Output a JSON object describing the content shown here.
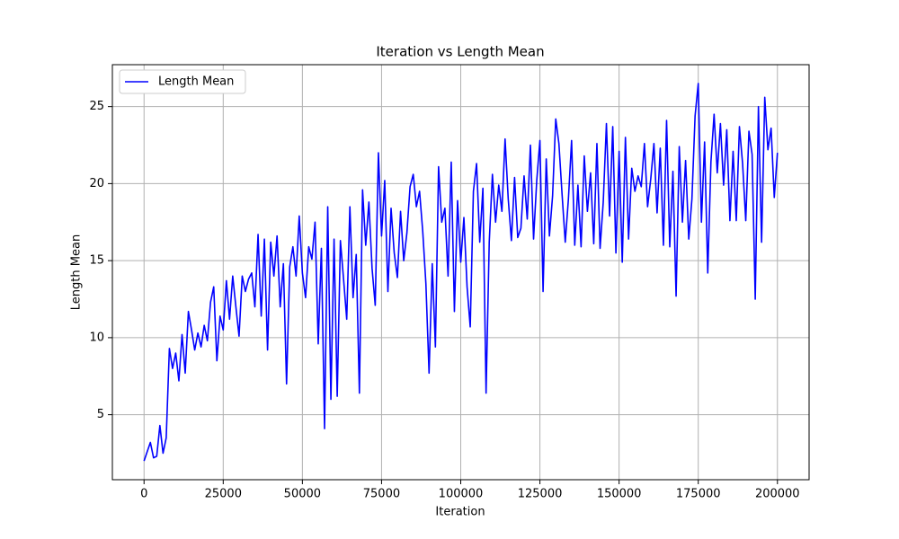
{
  "chart_data": {
    "type": "line",
    "title": "Iteration vs Length Mean",
    "x_label": "Iteration",
    "y_label": "Length Mean",
    "x": [
      0,
      1000,
      2000,
      3000,
      4000,
      5000,
      6000,
      7000,
      8000,
      9000,
      10000,
      11000,
      12000,
      13000,
      14000,
      15000,
      16000,
      17000,
      18000,
      19000,
      20000,
      21000,
      22000,
      23000,
      24000,
      25000,
      26000,
      27000,
      28000,
      29000,
      30000,
      31000,
      32000,
      33000,
      34000,
      35000,
      36000,
      37000,
      38000,
      39000,
      40000,
      41000,
      42000,
      43000,
      44000,
      45000,
      46000,
      47000,
      48000,
      49000,
      50000,
      51000,
      52000,
      53000,
      54000,
      55000,
      56000,
      57000,
      58000,
      59000,
      60000,
      61000,
      62000,
      63000,
      64000,
      65000,
      66000,
      67000,
      68000,
      69000,
      70000,
      71000,
      72000,
      73000,
      74000,
      75000,
      76000,
      77000,
      78000,
      79000,
      80000,
      81000,
      82000,
      83000,
      84000,
      85000,
      86000,
      87000,
      88000,
      89000,
      90000,
      91000,
      92000,
      93000,
      94000,
      95000,
      96000,
      97000,
      98000,
      99000,
      100000,
      101000,
      102000,
      103000,
      104000,
      105000,
      106000,
      107000,
      108000,
      109000,
      110000,
      111000,
      112000,
      113000,
      114000,
      115000,
      116000,
      117000,
      118000,
      119000,
      120000,
      121000,
      122000,
      123000,
      124000,
      125000,
      126000,
      127000,
      128000,
      129000,
      130000,
      131000,
      132000,
      133000,
      134000,
      135000,
      136000,
      137000,
      138000,
      139000,
      140000,
      141000,
      142000,
      143000,
      144000,
      145000,
      146000,
      147000,
      148000,
      149000,
      150000,
      151000,
      152000,
      153000,
      154000,
      155000,
      156000,
      157000,
      158000,
      159000,
      160000,
      161000,
      162000,
      163000,
      164000,
      165000,
      166000,
      167000,
      168000,
      169000,
      170000,
      171000,
      172000,
      173000,
      174000,
      175000,
      176000,
      177000,
      178000,
      179000,
      180000,
      181000,
      182000,
      183000,
      184000,
      185000,
      186000,
      187000,
      188000,
      189000,
      190000,
      191000,
      192000,
      193000,
      194000,
      195000,
      196000,
      197000,
      198000,
      199000,
      200000
    ],
    "series": [
      {
        "name": "Length Mean",
        "color": "#0000ff",
        "values": [
          2.0,
          2.6,
          3.2,
          2.2,
          2.3,
          4.3,
          2.5,
          3.5,
          9.3,
          8.0,
          9.0,
          7.2,
          10.2,
          7.7,
          11.7,
          10.5,
          9.2,
          10.3,
          9.4,
          10.8,
          9.8,
          12.3,
          13.3,
          8.5,
          11.4,
          10.5,
          13.7,
          11.2,
          14.0,
          12.0,
          10.1,
          14.0,
          13.0,
          13.8,
          14.2,
          12.0,
          16.7,
          11.4,
          16.4,
          9.2,
          16.2,
          14.0,
          16.6,
          12.0,
          14.8,
          7.0,
          14.6,
          15.9,
          14.0,
          17.9,
          14.2,
          12.6,
          15.9,
          15.1,
          17.5,
          9.6,
          15.8,
          4.1,
          18.5,
          6.0,
          16.4,
          6.2,
          16.3,
          13.8,
          11.2,
          18.5,
          12.6,
          15.4,
          6.4,
          19.6,
          16.0,
          18.8,
          14.5,
          12.1,
          22.0,
          16.6,
          20.2,
          13.0,
          18.4,
          15.5,
          13.9,
          18.2,
          15.0,
          16.8,
          19.8,
          20.6,
          18.5,
          19.5,
          16.9,
          13.5,
          7.7,
          14.8,
          9.4,
          21.1,
          17.5,
          18.4,
          14.0,
          21.4,
          11.7,
          18.9,
          14.9,
          17.8,
          13.3,
          10.7,
          19.5,
          21.3,
          16.2,
          19.7,
          6.4,
          16.2,
          20.6,
          17.5,
          19.9,
          18.2,
          22.9,
          19.0,
          16.3,
          20.4,
          16.5,
          17.1,
          20.5,
          17.7,
          22.5,
          16.4,
          20.2,
          22.8,
          13.0,
          21.6,
          16.6,
          19.2,
          24.2,
          22.6,
          19.3,
          16.2,
          19.0,
          22.8,
          16.0,
          19.9,
          15.9,
          21.8,
          18.2,
          20.7,
          16.1,
          22.6,
          15.8,
          18.8,
          23.9,
          17.9,
          23.7,
          15.5,
          22.1,
          14.9,
          23.0,
          16.4,
          21.0,
          19.5,
          20.5,
          19.8,
          22.6,
          18.5,
          20.3,
          22.6,
          18.1,
          22.3,
          16.0,
          24.1,
          15.9,
          20.8,
          12.7,
          22.4,
          17.5,
          21.5,
          16.4,
          19.0,
          24.4,
          26.5,
          17.5,
          22.7,
          14.2,
          21.4,
          24.5,
          20.7,
          23.9,
          19.9,
          23.5,
          17.6,
          22.1,
          17.6,
          23.7,
          21.3,
          17.6,
          23.4,
          21.9,
          12.5,
          25.0,
          16.2,
          25.6,
          22.2,
          23.6,
          19.1,
          22.0
        ]
      }
    ],
    "xlim": [
      -10000,
      210000
    ],
    "ylim": [
      0.78,
      27.72
    ],
    "xticks": [
      0,
      25000,
      50000,
      75000,
      100000,
      125000,
      150000,
      175000,
      200000
    ],
    "yticks": [
      5,
      10,
      15,
      20,
      25
    ],
    "grid": true,
    "legend": "upper left"
  }
}
